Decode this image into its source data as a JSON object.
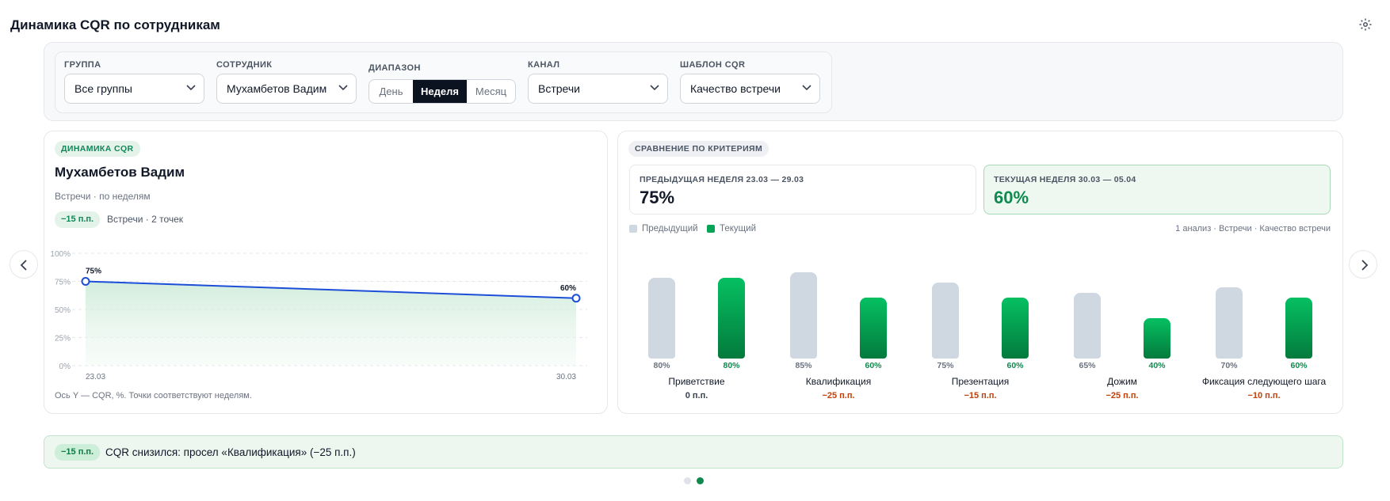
{
  "header": {
    "title": "Динамика CQR по сотрудникам",
    "settings_icon": "gear-icon"
  },
  "filters": {
    "group": {
      "label": "ГРУППА",
      "value": "Все группы"
    },
    "employee": {
      "label": "СОТРУДНИК",
      "value": "Мухамбетов Вадим"
    },
    "range": {
      "label": "ДИАПАЗОН",
      "options": [
        "День",
        "Неделя",
        "Месяц"
      ],
      "selected": "Неделя"
    },
    "channel": {
      "label": "КАНАЛ",
      "value": "Встречи"
    },
    "template": {
      "label": "ШАБЛОН CQR",
      "value": "Качество встречи"
    }
  },
  "dynamics": {
    "tag": "ДИНАМИКА CQR",
    "name": "Мухамбетов Вадим",
    "subtitle": "Встречи · по неделям",
    "delta": "−15 п.п.",
    "delta_note": "Встречи · 2 точек",
    "axis_note": "Ось Y — CQR, %. Точки соответствуют неделям."
  },
  "comparison": {
    "tag": "СРАВНЕНИЕ ПО КРИТЕРИЯМ",
    "previous": {
      "label": "ПРЕДЫДУЩАЯ НЕДЕЛЯ 23.03 — 29.03",
      "value": "75%"
    },
    "current": {
      "label": "ТЕКУЩАЯ НЕДЕЛЯ 30.03 — 05.04",
      "value": "60%"
    },
    "legend": {
      "prev": "Предыдущий",
      "cur": "Текущий"
    },
    "meta": "1 анализ · Встречи · Качество встречи",
    "colors": {
      "prev": "#cfd7e1",
      "cur": "#04a457",
      "negative": "#c2410c"
    }
  },
  "chart_data": [
    {
      "type": "area",
      "x": [
        "23.03",
        "30.03"
      ],
      "series": [
        {
          "values": [
            75,
            60
          ]
        }
      ],
      "data_labels": [
        "75%",
        "60%"
      ],
      "ylim": [
        0,
        100
      ],
      "yticks": [
        "0%",
        "25%",
        "50%",
        "75%",
        "100%"
      ],
      "grid": true
    },
    {
      "type": "bar",
      "categories": [
        "Приветствие",
        "Квалификация",
        "Презентация",
        "Дожим",
        "Фиксация следующего шага"
      ],
      "series": [
        {
          "name": "Предыдущий",
          "values": [
            80,
            85,
            75,
            65,
            70
          ],
          "labels": [
            "80%",
            "85%",
            "75%",
            "65%",
            "70%"
          ]
        },
        {
          "name": "Текущий",
          "values": [
            80,
            60,
            60,
            40,
            60
          ],
          "labels": [
            "80%",
            "60%",
            "60%",
            "40%",
            "60%"
          ]
        }
      ],
      "deltas": [
        "0 п.п.",
        "−25 п.п.",
        "−15 п.п.",
        "−25 п.п.",
        "−10 п.п."
      ],
      "ylim": [
        0,
        100
      ]
    }
  ],
  "banner": {
    "delta": "−15 п.п.",
    "text": "CQR снизился: просел «Квалификация» (−25 п.п.)"
  },
  "pagination": {
    "pages": 2,
    "current": 2
  }
}
